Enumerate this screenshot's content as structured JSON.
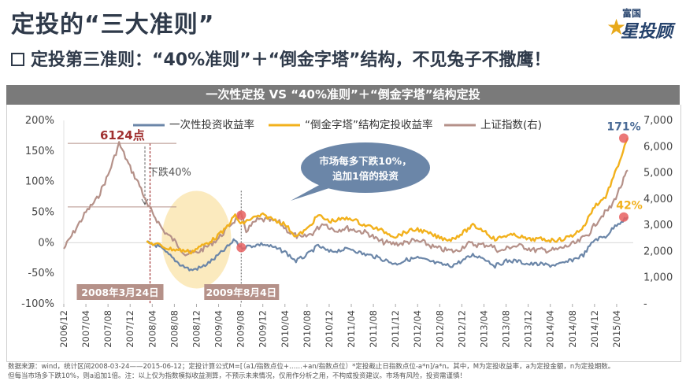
{
  "header": {
    "title": "定投的“三大准则”",
    "subtitle": "定投第三准则：“40%准则”＋“倒金字塔”结构，不见兔子不撒鹰！"
  },
  "logo": {
    "top": "富国",
    "main": "星投顾",
    "icon": "star-icon"
  },
  "banner": {
    "text": "一次性定投 VS “40%准则”＋“倒金字塔”结构定投"
  },
  "chart_data": {
    "type": "line",
    "title": "一次性定投 VS “40%准则”＋“倒金字塔”结构定投",
    "xlabel": "",
    "ylabel_left": "",
    "ylabel_right": "",
    "x_ticks": [
      "2006/12",
      "2007/04",
      "2007/08",
      "2007/12",
      "2008/04",
      "2008/08",
      "2008/12",
      "2009/04",
      "2009/08",
      "2009/12",
      "2010/04",
      "2010/08",
      "2010/12",
      "2011/04",
      "2011/08",
      "2011/12",
      "2012/04",
      "2012/08",
      "2012/12",
      "2013/04",
      "2013/08",
      "2013/12",
      "2014/04",
      "2014/08",
      "2014/12",
      "2015/04"
    ],
    "y_left_ticks": [
      "-100%",
      "-50%",
      "0%",
      "50%",
      "100%",
      "150%",
      "200%"
    ],
    "y_left_range": [
      -100,
      200
    ],
    "y_right_ticks": [
      "-",
      "1,000",
      "2,000",
      "3,000",
      "4,000",
      "5,000",
      "6,000",
      "7,000"
    ],
    "y_right_range": [
      0,
      7000
    ],
    "legend_position": "top",
    "series": [
      {
        "name": "一次性投资收益率",
        "axis": "left",
        "color": "#6b86a8",
        "points": [
          [
            "2008/03",
            0
          ],
          [
            "2008/05",
            -5
          ],
          [
            "2008/07",
            -20
          ],
          [
            "2008/09",
            -35
          ],
          [
            "2008/11",
            -45
          ],
          [
            "2009/01",
            -40
          ],
          [
            "2009/03",
            -28
          ],
          [
            "2009/05",
            -12
          ],
          [
            "2009/07",
            5
          ],
          [
            "2009/08",
            -8
          ],
          [
            "2009/10",
            -5
          ],
          [
            "2009/12",
            -2
          ],
          [
            "2010/02",
            -8
          ],
          [
            "2010/04",
            -15
          ],
          [
            "2010/06",
            -30
          ],
          [
            "2010/08",
            -20
          ],
          [
            "2010/10",
            -5
          ],
          [
            "2010/12",
            -15
          ],
          [
            "2011/02",
            -12
          ],
          [
            "2011/04",
            -10
          ],
          [
            "2011/06",
            -18
          ],
          [
            "2011/08",
            -22
          ],
          [
            "2011/10",
            -28
          ],
          [
            "2011/12",
            -35
          ],
          [
            "2012/02",
            -28
          ],
          [
            "2012/04",
            -25
          ],
          [
            "2012/06",
            -30
          ],
          [
            "2012/08",
            -35
          ],
          [
            "2012/10",
            -38
          ],
          [
            "2012/12",
            -30
          ],
          [
            "2013/02",
            -20
          ],
          [
            "2013/04",
            -25
          ],
          [
            "2013/06",
            -38
          ],
          [
            "2013/08",
            -30
          ],
          [
            "2013/10",
            -30
          ],
          [
            "2013/12",
            -35
          ],
          [
            "2014/02",
            -35
          ],
          [
            "2014/04",
            -37
          ],
          [
            "2014/06",
            -35
          ],
          [
            "2014/08",
            -28
          ],
          [
            "2014/10",
            -20
          ],
          [
            "2014/12",
            5
          ],
          [
            "2015/02",
            10
          ],
          [
            "2015/04",
            30
          ],
          [
            "2015/06",
            42
          ]
        ]
      },
      {
        "name": "“倒金字塔”结构定投收益率",
        "axis": "left",
        "color": "#f2b11c",
        "points": [
          [
            "2008/03",
            0
          ],
          [
            "2008/05",
            -3
          ],
          [
            "2008/07",
            -10
          ],
          [
            "2008/09",
            -12
          ],
          [
            "2008/11",
            -15
          ],
          [
            "2009/01",
            -5
          ],
          [
            "2009/03",
            5
          ],
          [
            "2009/05",
            20
          ],
          [
            "2009/07",
            45
          ],
          [
            "2009/08",
            30
          ],
          [
            "2009/10",
            40
          ],
          [
            "2009/12",
            45
          ],
          [
            "2010/02",
            38
          ],
          [
            "2010/04",
            30
          ],
          [
            "2010/06",
            10
          ],
          [
            "2010/08",
            22
          ],
          [
            "2010/10",
            45
          ],
          [
            "2010/12",
            35
          ],
          [
            "2011/02",
            38
          ],
          [
            "2011/04",
            40
          ],
          [
            "2011/06",
            30
          ],
          [
            "2011/08",
            25
          ],
          [
            "2011/10",
            18
          ],
          [
            "2011/12",
            10
          ],
          [
            "2012/02",
            18
          ],
          [
            "2012/04",
            22
          ],
          [
            "2012/06",
            15
          ],
          [
            "2012/08",
            8
          ],
          [
            "2012/10",
            5
          ],
          [
            "2012/12",
            15
          ],
          [
            "2013/02",
            28
          ],
          [
            "2013/04",
            20
          ],
          [
            "2013/06",
            5
          ],
          [
            "2013/08",
            12
          ],
          [
            "2013/10",
            12
          ],
          [
            "2013/12",
            5
          ],
          [
            "2014/02",
            6
          ],
          [
            "2014/04",
            4
          ],
          [
            "2014/06",
            5
          ],
          [
            "2014/08",
            12
          ],
          [
            "2014/10",
            25
          ],
          [
            "2014/12",
            60
          ],
          [
            "2015/02",
            75
          ],
          [
            "2015/04",
            120
          ],
          [
            "2015/06",
            171
          ]
        ]
      },
      {
        "name": "上证指数(右)",
        "axis": "right",
        "color": "#b59189",
        "points": [
          [
            "2006/12",
            2100
          ],
          [
            "2007/02",
            2800
          ],
          [
            "2007/04",
            3500
          ],
          [
            "2007/06",
            4000
          ],
          [
            "2007/08",
            4900
          ],
          [
            "2007/10",
            6124
          ],
          [
            "2007/12",
            5200
          ],
          [
            "2008/02",
            4400
          ],
          [
            "2008/03",
            3800
          ],
          [
            "2008/04",
            3500
          ],
          [
            "2008/06",
            2800
          ],
          [
            "2008/08",
            2400
          ],
          [
            "2008/10",
            1900
          ],
          [
            "2008/12",
            1950
          ],
          [
            "2009/02",
            2200
          ],
          [
            "2009/04",
            2500
          ],
          [
            "2009/06",
            3000
          ],
          [
            "2009/08",
            3400
          ],
          [
            "2009/09",
            2800
          ],
          [
            "2009/11",
            3200
          ],
          [
            "2010/01",
            3200
          ],
          [
            "2010/03",
            3100
          ],
          [
            "2010/05",
            2700
          ],
          [
            "2010/07",
            2500
          ],
          [
            "2010/09",
            2700
          ],
          [
            "2010/11",
            3100
          ],
          [
            "2011/01",
            2800
          ],
          [
            "2011/03",
            2900
          ],
          [
            "2011/05",
            2800
          ],
          [
            "2011/07",
            2700
          ],
          [
            "2011/09",
            2400
          ],
          [
            "2011/11",
            2300
          ],
          [
            "2012/01",
            2300
          ],
          [
            "2012/03",
            2400
          ],
          [
            "2012/05",
            2350
          ],
          [
            "2012/07",
            2150
          ],
          [
            "2012/09",
            2050
          ],
          [
            "2012/11",
            2000
          ],
          [
            "2013/01",
            2300
          ],
          [
            "2013/03",
            2250
          ],
          [
            "2013/05",
            2250
          ],
          [
            "2013/07",
            2000
          ],
          [
            "2013/09",
            2200
          ],
          [
            "2013/11",
            2200
          ],
          [
            "2014/01",
            2050
          ],
          [
            "2014/03",
            2050
          ],
          [
            "2014/05",
            2050
          ],
          [
            "2014/07",
            2200
          ],
          [
            "2014/09",
            2350
          ],
          [
            "2014/11",
            2700
          ],
          [
            "2015/01",
            3300
          ],
          [
            "2015/03",
            3700
          ],
          [
            "2015/05",
            4600
          ],
          [
            "2015/06",
            5100
          ]
        ]
      }
    ],
    "annotations": {
      "peak_label": "6124点",
      "drop_label": "下跌40%",
      "bubble_line1": "市场每多下跌10%，",
      "bubble_line2": "追加1倍的投资",
      "date1": "2008年3月24日",
      "date2": "2009年8月4日",
      "end_label_gold": "171%",
      "end_label_blue": "42%"
    }
  },
  "footnote": {
    "line1": "数据来源：wind，统计区间2008-03-24——2015-06-12；定投计算公式M=[（a1/指数点位+……+an/指数点位）*定投截止日指数点位-a*n]/a*n。其中，M为定投收益率，a为定投金额，n为定投期数。",
    "line2": "但每当市场多下跌10%，则a追加1倍。注：以上仅为指数模拟收益测算，不预示未来情况，仅用作分析之用，不构成投资建议。市场有风险，投资需谨慎！"
  }
}
